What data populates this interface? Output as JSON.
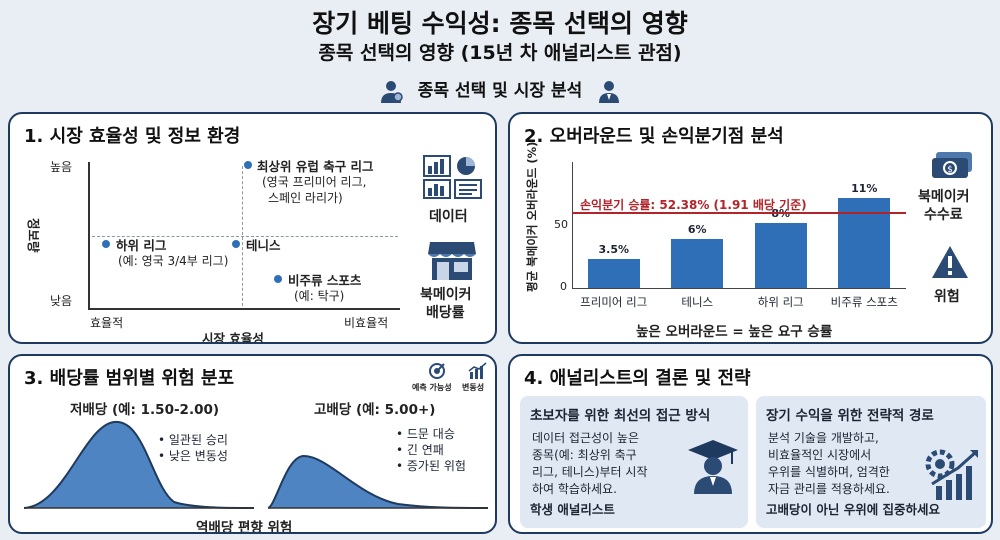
{
  "header": {
    "title": "장기 베팅 수익성: 종목 선택의 영향",
    "subtitle": "종목 선택의 영향 (15년 차 애널리스트 관점)",
    "topic": "종목 선택 및 시장 분석"
  },
  "panel1": {
    "title": "1. 시장 효율성 및 정보 환경",
    "y_axis_label": "정보량",
    "y_high": "높음",
    "y_low": "낮음",
    "x_axis_label": "시장 효율성",
    "x_left": "효율적",
    "x_right": "비효율적",
    "points": [
      {
        "name": "최상위 유럽 축구 리그",
        "note1": "(영국 프리미어 리그,",
        "note2": "스페인 라리가)"
      },
      {
        "name": "하위 리그",
        "note1": "(예: 영국 3/4부 리그)",
        "note2": ""
      },
      {
        "name": "테니스",
        "note1": "",
        "note2": ""
      },
      {
        "name": "비주류 스포츠",
        "note1": "(예: 탁구)",
        "note2": ""
      }
    ],
    "side_labels": {
      "data": "데이터",
      "bookmaker_line1": "북메이커",
      "bookmaker_line2": "배당률"
    },
    "icons": [
      "chart-icon",
      "store-icon"
    ]
  },
  "panel2": {
    "title": "2. 오버라운드 및 손익분기점 분석",
    "y_axis_label": "평균 북메이커 오버라운드 (%)",
    "y_ticks": [
      "0",
      "50"
    ],
    "breakeven_label": "손익분기 승률: 52.38% (1.91 배당 기준)",
    "footer": "높은 오버라운드 = 높은 요구 승률",
    "side_labels": {
      "fee_line1": "북메이커",
      "fee_line2": "수수료",
      "risk": "위험"
    },
    "icons": [
      "money-icon",
      "warning-icon"
    ]
  },
  "chart_data": {
    "type": "bar",
    "categories": [
      "프리미어 리그",
      "테니스",
      "하위 리그",
      "비주류 스포츠"
    ],
    "values": [
      3.5,
      6,
      8,
      11
    ],
    "value_labels": [
      "3.5%",
      "6%",
      "8%",
      "11%"
    ],
    "ylabel": "평균 북메이커 오버라운드 (%)",
    "breakeven_line": 52.38,
    "ylim": [
      0,
      12
    ]
  },
  "panel3": {
    "title": "3. 배당률 범위별 위험 분포",
    "legend": {
      "predict": "예측 가능성",
      "volatility": "변동성"
    },
    "low_odds": {
      "title": "저배당 (예: 1.50-2.00)",
      "bullets": [
        "• 일관된 승리",
        "• 낮은 변동성"
      ]
    },
    "high_odds": {
      "title": "고배당 (예: 5.00+)",
      "bullets": [
        "• 드문 대승",
        "• 긴 연패",
        "• 증가된 위험"
      ]
    },
    "footer": "역배당 편향 위험"
  },
  "panel4": {
    "title": "4. 애널리스트의 결론 및 전략",
    "card1": {
      "heading": "초보자를 위한 최선의 접근 방식",
      "lines": [
        "데이터 접근성이 높은",
        "종목(예: 최상위 축구",
        "리그, 테니스)부터 시작",
        "하여 학습하세요."
      ],
      "footer": "학생 애널리스트"
    },
    "card2": {
      "heading": "장기 수익을 위한 전략적 경로",
      "lines": [
        "분석 기술을 개발하고,",
        "비효율적인 시장에서",
        "우위를 식별하며, 엄격한",
        "자금 관리를 적용하세요."
      ],
      "footer": "고배당이 아닌 우위에 집중하세요"
    }
  },
  "colors": {
    "accent": "#2f6fb7",
    "navy": "#1e3a5f",
    "breakeven": "#b3242a",
    "card": "#dfe8f3"
  }
}
